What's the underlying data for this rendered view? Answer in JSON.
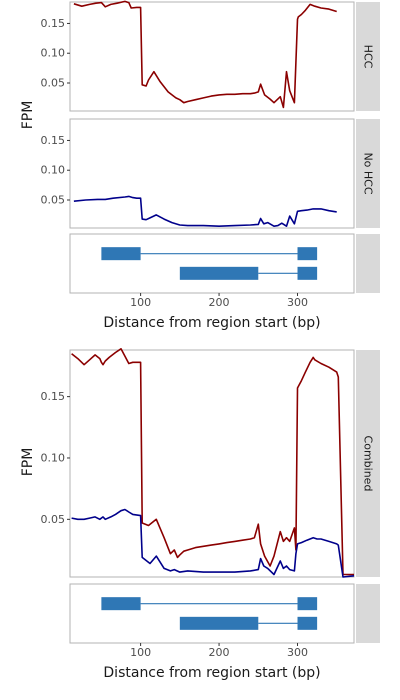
{
  "colors": {
    "hcc": "#8b0000",
    "no_hcc": "#00008b",
    "exon": "#2f77b5",
    "panel_border": "#b3b3b3",
    "strip": "#d9d9d9"
  },
  "chart_data": [
    {
      "type": "line",
      "ylabel": "FPM",
      "xlabel": "Distance from region start (bp)",
      "xlim": [
        10,
        372
      ],
      "x_ticks": [
        100,
        200,
        300
      ],
      "y_ticks": [
        0.05,
        0.1,
        0.15
      ],
      "y_tick_labels": [
        "0.05",
        "0.10",
        "0.15"
      ],
      "panels": [
        {
          "strip": "HCC",
          "ylim": [
            0.003,
            0.186
          ],
          "series": [
            {
              "key": "hcc",
              "color": "#8b0000",
              "x": [
                15,
                25,
                35,
                43,
                50,
                55,
                62,
                70,
                80,
                85,
                88,
                95,
                98,
                100,
                102,
                107,
                110,
                117,
                125,
                135,
                145,
                150,
                155,
                160,
                170,
                180,
                190,
                200,
                210,
                220,
                230,
                240,
                245,
                250,
                253,
                258,
                265,
                270,
                278,
                282,
                286,
                290,
                296,
                300,
                301,
                305,
                310,
                316,
                322,
                330,
                340,
                350
              ],
              "y": [
                0.183,
                0.179,
                0.182,
                0.184,
                0.185,
                0.178,
                0.182,
                0.184,
                0.187,
                0.185,
                0.176,
                0.177,
                0.177,
                0.177,
                0.047,
                0.045,
                0.055,
                0.069,
                0.052,
                0.035,
                0.025,
                0.022,
                0.017,
                0.019,
                0.022,
                0.025,
                0.028,
                0.03,
                0.031,
                0.031,
                0.032,
                0.032,
                0.033,
                0.035,
                0.048,
                0.03,
                0.023,
                0.017,
                0.027,
                0.009,
                0.069,
                0.037,
                0.017,
                0.157,
                0.161,
                0.165,
                0.172,
                0.182,
                0.179,
                0.176,
                0.174,
                0.17
              ]
            }
          ]
        },
        {
          "strip": "No HCC",
          "ylim": [
            0.003,
            0.186
          ],
          "series": [
            {
              "key": "no_hcc",
              "color": "#00008b",
              "x": [
                15,
                30,
                45,
                55,
                65,
                80,
                85,
                90,
                95,
                100,
                102,
                107,
                112,
                120,
                130,
                140,
                150,
                160,
                180,
                200,
                220,
                240,
                250,
                253,
                257,
                262,
                270,
                275,
                280,
                286,
                290,
                296,
                300,
                305,
                312,
                320,
                330,
                340,
                350
              ],
              "y": [
                0.048,
                0.05,
                0.051,
                0.051,
                0.053,
                0.055,
                0.056,
                0.054,
                0.053,
                0.053,
                0.018,
                0.017,
                0.02,
                0.025,
                0.018,
                0.012,
                0.008,
                0.007,
                0.007,
                0.006,
                0.007,
                0.008,
                0.009,
                0.019,
                0.01,
                0.012,
                0.006,
                0.007,
                0.011,
                0.006,
                0.023,
                0.01,
                0.031,
                0.032,
                0.033,
                0.035,
                0.035,
                0.032,
                0.03
              ]
            }
          ]
        }
      ]
    },
    {
      "type": "table",
      "xlim": [
        10,
        372
      ],
      "transcripts": [
        {
          "exons": [
            [
              50,
              100
            ],
            [
              300,
              325
            ]
          ]
        },
        {
          "exons": [
            [
              150,
              250
            ],
            [
              300,
              325
            ]
          ]
        }
      ]
    },
    {
      "type": "line",
      "ylabel": "FPM",
      "xlabel": "Distance from region start (bp)",
      "xlim": [
        10,
        372
      ],
      "x_ticks": [
        100,
        200,
        300
      ],
      "y_ticks": [
        0.05,
        0.1,
        0.15
      ],
      "y_tick_labels": [
        "0.05",
        "0.10",
        "0.15"
      ],
      "panels": [
        {
          "strip": "Combined",
          "ylim": [
            0.003,
            0.188
          ],
          "series": [
            {
              "key": "hcc",
              "color": "#8b0000",
              "x": [
                12,
                20,
                28,
                35,
                42,
                48,
                50,
                52,
                55,
                60,
                68,
                75,
                80,
                85,
                90,
                95,
                100,
                102,
                110,
                120,
                130,
                138,
                143,
                147,
                150,
                155,
                160,
                170,
                180,
                190,
                200,
                210,
                220,
                230,
                240,
                245,
                250,
                253,
                258,
                265,
                270,
                278,
                282,
                286,
                290,
                296,
                298,
                300,
                305,
                310,
                316,
                320,
                322,
                330,
                340,
                350,
                352,
                358,
                372
              ],
              "y": [
                0.185,
                0.181,
                0.176,
                0.18,
                0.184,
                0.181,
                0.178,
                0.176,
                0.179,
                0.182,
                0.186,
                0.189,
                0.183,
                0.177,
                0.178,
                0.178,
                0.178,
                0.047,
                0.045,
                0.05,
                0.035,
                0.022,
                0.025,
                0.019,
                0.021,
                0.024,
                0.025,
                0.027,
                0.028,
                0.029,
                0.03,
                0.031,
                0.032,
                0.033,
                0.034,
                0.035,
                0.046,
                0.03,
                0.02,
                0.012,
                0.02,
                0.04,
                0.032,
                0.035,
                0.032,
                0.043,
                0.025,
                0.157,
                0.163,
                0.17,
                0.178,
                0.182,
                0.18,
                0.177,
                0.174,
                0.17,
                0.166,
                0.005,
                0.005
              ]
            },
            {
              "key": "no_hcc",
              "color": "#00008b",
              "x": [
                12,
                20,
                28,
                35,
                42,
                48,
                52,
                55,
                62,
                68,
                75,
                80,
                85,
                90,
                100,
                102,
                112,
                120,
                130,
                138,
                143,
                150,
                160,
                180,
                200,
                220,
                240,
                250,
                253,
                257,
                262,
                270,
                278,
                282,
                286,
                290,
                296,
                298,
                300,
                305,
                312,
                320,
                325,
                330,
                340,
                350,
                352,
                358,
                372
              ],
              "y": [
                0.051,
                0.05,
                0.05,
                0.051,
                0.052,
                0.05,
                0.052,
                0.05,
                0.052,
                0.054,
                0.057,
                0.058,
                0.056,
                0.054,
                0.053,
                0.019,
                0.014,
                0.02,
                0.01,
                0.008,
                0.009,
                0.007,
                0.008,
                0.007,
                0.007,
                0.007,
                0.008,
                0.009,
                0.018,
                0.012,
                0.01,
                0.005,
                0.016,
                0.01,
                0.012,
                0.009,
                0.008,
                0.022,
                0.03,
                0.031,
                0.033,
                0.035,
                0.034,
                0.034,
                0.032,
                0.03,
                0.029,
                0.003,
                0.004
              ]
            }
          ]
        }
      ]
    },
    {
      "type": "table",
      "xlim": [
        10,
        372
      ],
      "transcripts": [
        {
          "exons": [
            [
              50,
              100
            ],
            [
              300,
              325
            ]
          ]
        },
        {
          "exons": [
            [
              150,
              250
            ],
            [
              300,
              325
            ]
          ]
        }
      ]
    }
  ]
}
